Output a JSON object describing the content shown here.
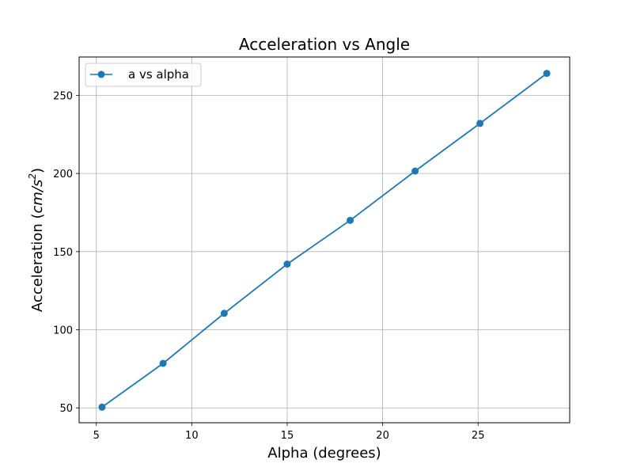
{
  "chart_data": {
    "type": "line",
    "title": "Acceleration vs Angle",
    "xlabel": "Alpha (degrees)",
    "ylabel_main": "Acceleration (",
    "ylabel_unit": "cm/s",
    "ylabel_exp": "2",
    "ylabel_close": ")",
    "xlim": [
      4.1,
      29.8
    ],
    "ylim": [
      40.5,
      274.5
    ],
    "xticks": [
      5,
      10,
      15,
      20,
      25
    ],
    "yticks": [
      50,
      100,
      150,
      200,
      250
    ],
    "grid": true,
    "legend_position": "top-left",
    "series": [
      {
        "name": "a vs alpha",
        "color": "#1f77b4",
        "marker": "circle",
        "x": [
          5.3,
          8.5,
          11.7,
          15.0,
          18.3,
          21.7,
          25.1,
          28.6
        ],
        "y": [
          50.5,
          78.5,
          110.5,
          142.0,
          170.0,
          201.5,
          232.0,
          264.0
        ]
      }
    ]
  }
}
